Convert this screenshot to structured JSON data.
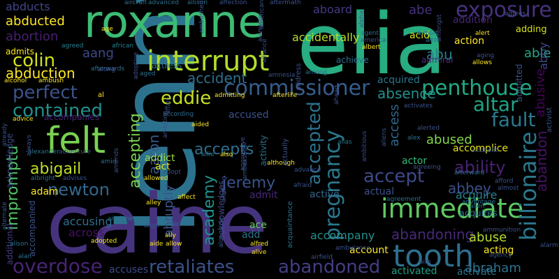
{
  "words": [
    {
      "text": "lenny",
      "color": "#2c728e"
    },
    {
      "text": "elia",
      "color": "#27ad81"
    },
    {
      "text": "caine",
      "color": "#46337e"
    },
    {
      "text": "roxanne",
      "color": "#3dbc74"
    },
    {
      "text": "tooth",
      "color": "#2e6e8e"
    },
    {
      "text": "interrupt",
      "color": "#b2dd2c"
    },
    {
      "text": "felt",
      "color": "#7ad151"
    },
    {
      "text": "immediate",
      "color": "#5ec962"
    },
    {
      "text": "penthouse",
      "color": "#22a884"
    },
    {
      "text": "commissioner",
      "color": "#365d8d"
    },
    {
      "text": "exposure",
      "color": "#46327e"
    },
    {
      "text": "retaliates",
      "color": "#3b528b"
    },
    {
      "text": "abandoned",
      "color": "#433d84"
    },
    {
      "text": "overdose",
      "color": "#482475"
    },
    {
      "text": "billionaire",
      "color": "#2a788e"
    },
    {
      "text": "contained",
      "color": "#21918c"
    },
    {
      "text": "perfect",
      "color": "#3b528b"
    },
    {
      "text": "colin",
      "color": "#d0e11c"
    },
    {
      "text": "abduction",
      "color": "#fde725"
    },
    {
      "text": "abortion",
      "color": "#481f70"
    },
    {
      "text": "abducted",
      "color": "#fde725"
    },
    {
      "text": "abducts",
      "color": "#414487"
    },
    {
      "text": "pregnancy",
      "color": "#2a788e"
    },
    {
      "text": "jeremy",
      "color": "#3b528b"
    },
    {
      "text": "newton",
      "color": "#31688e"
    },
    {
      "text": "abigail",
      "color": "#bddf26"
    },
    {
      "text": "impromptu",
      "color": "#52c569"
    },
    {
      "text": "aaron",
      "color": "#38588c"
    },
    {
      "text": "eddie",
      "color": "#c8e020"
    },
    {
      "text": "accident",
      "color": "#2e6f8e"
    },
    {
      "text": "accepted",
      "color": "#2c728e"
    },
    {
      "text": "altar",
      "color": "#20a386"
    },
    {
      "text": "fault",
      "color": "#2a788e"
    },
    {
      "text": "abu",
      "color": "#26828e"
    },
    {
      "text": "aang",
      "color": "#3e4989"
    },
    {
      "text": "abe",
      "color": "#46307e"
    },
    {
      "text": "able",
      "color": "#22a785"
    },
    {
      "text": "aboard",
      "color": "#443a83"
    },
    {
      "text": "abandon",
      "color": "#471365"
    },
    {
      "text": "abusive",
      "color": "#450457"
    },
    {
      "text": "abby",
      "color": "#404688"
    },
    {
      "text": "absence",
      "color": "#21918c"
    },
    {
      "text": "accept",
      "color": "#3e4989"
    },
    {
      "text": "ability",
      "color": "#482173"
    },
    {
      "text": "abbey",
      "color": "#3c508b"
    },
    {
      "text": "accepts",
      "color": "#2d708e"
    },
    {
      "text": "accepting",
      "color": "#7ad151"
    },
    {
      "text": "abused",
      "color": "#86d549"
    },
    {
      "text": "academy",
      "color": "#1f948c"
    },
    {
      "text": "abruptly",
      "color": "#3b528b"
    },
    {
      "text": "abandoning",
      "color": "#482878"
    },
    {
      "text": "abuse",
      "color": "#b5de2b"
    },
    {
      "text": "abraham",
      "color": "#2c728e"
    },
    {
      "text": "access",
      "color": "#31688e"
    },
    {
      "text": "accidentally",
      "color": "#b8de29"
    },
    {
      "text": "acid",
      "color": "#d2e21b"
    },
    {
      "text": "addition",
      "color": "#482475"
    },
    {
      "text": "action",
      "color": "#fde725"
    },
    {
      "text": "adding",
      "color": "#d5e21a"
    },
    {
      "text": "acquired",
      "color": "#2a788e"
    },
    {
      "text": "accomplice",
      "color": "#e5e419"
    },
    {
      "text": "acquire",
      "color": "#26828e"
    },
    {
      "text": "accompany",
      "color": "#21918c"
    },
    {
      "text": "account",
      "color": "#fde725"
    },
    {
      "text": "acting",
      "color": "#fde725"
    },
    {
      "text": "activated",
      "color": "#1fa088"
    },
    {
      "text": "activate",
      "color": "#2c728e"
    },
    {
      "text": "accusing",
      "color": "#2e6e8e"
    },
    {
      "text": "accuses",
      "color": "#3e4989"
    },
    {
      "text": "across",
      "color": "#471063"
    },
    {
      "text": "ace",
      "color": "#6ccd5a"
    },
    {
      "text": "add",
      "color": "#2c728e"
    },
    {
      "text": "admit",
      "color": "#482878"
    },
    {
      "text": "active",
      "color": "#31688e"
    },
    {
      "text": "actual",
      "color": "#3b528b"
    },
    {
      "text": "actor",
      "color": "#35b779"
    },
    {
      "text": "addict",
      "color": "#a0da39"
    },
    {
      "text": "act",
      "color": "#dde318"
    },
    {
      "text": "adam",
      "color": "#fde725"
    },
    {
      "text": "accused",
      "color": "#3b528b"
    },
    {
      "text": "achieve",
      "color": "#2e6e8e"
    },
    {
      "text": "admiral",
      "color": "#46327e"
    },
    {
      "text": "acquires",
      "color": "#2c728e"
    },
    {
      "text": "admitted",
      "color": "#3b528b"
    },
    {
      "text": "accompanies",
      "color": "#482475"
    },
    {
      "text": "accompanied",
      "color": "#3b528b"
    },
    {
      "text": "additional",
      "color": "#433d84"
    },
    {
      "text": "acknowledge",
      "color": "#3e4989"
    },
    {
      "text": "acknowledges",
      "color": "#3e4989"
    },
    {
      "text": "admits",
      "color": "#fde725"
    },
    {
      "text": "agreed",
      "color": "#26828e"
    },
    {
      "text": "african",
      "color": "#26828e"
    },
    {
      "text": "actress",
      "color": "#2a788e"
    },
    {
      "text": "afterwards",
      "color": "#2e6e8e"
    },
    {
      "text": "age",
      "color": "#fde725"
    },
    {
      "text": "alcohol",
      "color": "#fde725"
    },
    {
      "text": "ambush",
      "color": "#fde725"
    },
    {
      "text": "according",
      "color": "#2e6e8e"
    },
    {
      "text": "admitting",
      "color": "#fde725"
    },
    {
      "text": "afterlife",
      "color": "#fde725"
    },
    {
      "text": "aided",
      "color": "#fde725"
    },
    {
      "text": "advice",
      "color": "#fde725"
    },
    {
      "text": "alexander",
      "color": "#2c728e"
    },
    {
      "text": "adventure",
      "color": "#3b528b"
    },
    {
      "text": "allie",
      "color": "#2c728e"
    },
    {
      "text": "also",
      "color": "#fde725"
    },
    {
      "text": "alias",
      "color": "#2c728e"
    },
    {
      "text": "alex",
      "color": "#2c728e"
    },
    {
      "text": "albright",
      "color": "#2c728e"
    },
    {
      "text": "advises",
      "color": "#3b528b"
    },
    {
      "text": "alley",
      "color": "#fde725"
    },
    {
      "text": "allowed",
      "color": "#fde725"
    },
    {
      "text": "adopt",
      "color": "#3b528b"
    },
    {
      "text": "afraid",
      "color": "#3b528b"
    },
    {
      "text": "aircraft",
      "color": "#2c728e"
    },
    {
      "text": "advanced",
      "color": "#2c728e"
    },
    {
      "text": "allison",
      "color": "#2c728e"
    },
    {
      "text": "affection",
      "color": "#3b528b"
    },
    {
      "text": "aftermath",
      "color": "#3b528b"
    },
    {
      "text": "agent",
      "color": "#2c728e"
    },
    {
      "text": "america",
      "color": "#3b528b"
    },
    {
      "text": "albert",
      "color": "#fde725"
    },
    {
      "text": "airport",
      "color": "#2c728e"
    },
    {
      "text": "alter",
      "color": "#2c728e"
    },
    {
      "text": "alert",
      "color": "#fde725"
    },
    {
      "text": "agrees",
      "color": "#3b528b"
    },
    {
      "text": "aging",
      "color": "#3b528b"
    },
    {
      "text": "allows",
      "color": "#fde725"
    },
    {
      "text": "agreeing",
      "color": "#3b528b"
    },
    {
      "text": "afterward",
      "color": "#2c728e"
    },
    {
      "text": "afford",
      "color": "#3b528b"
    },
    {
      "text": "almost",
      "color": "#3b528b"
    },
    {
      "text": "advantage",
      "color": "#2c728e"
    },
    {
      "text": "allen",
      "color": "#2c728e"
    },
    {
      "text": "agreement",
      "color": "#2c728e"
    },
    {
      "text": "airfield",
      "color": "#3b528b"
    },
    {
      "text": "alive",
      "color": "#fde725"
    },
    {
      "text": "alfred",
      "color": "#fde725"
    },
    {
      "text": "aide",
      "color": "#fde725"
    },
    {
      "text": "adopted",
      "color": "#fde725"
    },
    {
      "text": "airplane",
      "color": "#2c728e"
    },
    {
      "text": "air",
      "color": "#2c728e"
    },
    {
      "text": "allow",
      "color": "#fde725"
    },
    {
      "text": "ally",
      "color": "#fde725"
    },
    {
      "text": "affect",
      "color": "#fde725"
    },
    {
      "text": "ammunition",
      "color": "#3b528b"
    },
    {
      "text": "alarm",
      "color": "#3b528b"
    },
    {
      "text": "ambulance",
      "color": "#3b528b"
    },
    {
      "text": "agency",
      "color": "#3b528b"
    },
    {
      "text": "aim",
      "color": "#3b528b"
    },
    {
      "text": "alan",
      "color": "#2c728e"
    },
    {
      "text": "alison",
      "color": "#2c728e"
    },
    {
      "text": "among",
      "color": "#2c728e"
    },
    {
      "text": "amnesia",
      "color": "#3b528b"
    },
    {
      "text": "aged",
      "color": "#2c728e"
    },
    {
      "text": "al",
      "color": "#fde725"
    },
    {
      "text": "along",
      "color": "#3b528b"
    },
    {
      "text": "amid",
      "color": "#2c728e"
    },
    {
      "text": "align",
      "color": "#3b528b"
    },
    {
      "text": "advance",
      "color": "#3b528b"
    },
    {
      "text": "alerted",
      "color": "#3b528b"
    },
    {
      "text": "although",
      "color": "#fde725"
    },
    {
      "text": "activity",
      "color": "#2c728e"
    },
    {
      "text": "activist",
      "color": "#3b528b"
    },
    {
      "text": "alcoholic",
      "color": "#3b528b"
    },
    {
      "text": "activates",
      "color": "#3b528b"
    },
    {
      "text": "actually",
      "color": "#3b528b"
    },
    {
      "text": "ambitious",
      "color": "#3b528b"
    },
    {
      "text": "address",
      "color": "#3b528b"
    },
    {
      "text": "ambassador",
      "color": "#3b528b"
    },
    {
      "text": "acquaintance",
      "color": "#2c728e"
    },
    {
      "text": "aliens",
      "color": "#3b528b"
    },
    {
      "text": "allowing",
      "color": "#3b528b"
    },
    {
      "text": "alongside",
      "color": "#3b528b"
    },
    {
      "text": "ambition",
      "color": "#3b528b"
    },
    {
      "text": "affair",
      "color": "#3b528b"
    },
    {
      "text": "amends",
      "color": "#3b528b"
    },
    {
      "text": "always",
      "color": "#3b528b"
    },
    {
      "text": "already",
      "color": "#3b528b"
    },
    {
      "text": "alternate",
      "color": "#3b528b"
    },
    {
      "text": "adoptive",
      "color": "#3b528b"
    },
    {
      "text": "ambushed",
      "color": "#3b528b"
    },
    {
      "text": "alameim",
      "color": "#3b528b"
    },
    {
      "text": "alliance",
      "color": "#3b528b"
    },
    {
      "text": "amongst",
      "color": "#3b528b"
    },
    {
      "text": "ahead",
      "color": "#3b528b"
    },
    {
      "text": "alpha",
      "color": "#3b528b"
    },
    {
      "text": "aggressive",
      "color": "#3b528b"
    },
    {
      "text": "american",
      "color": "#3b528b"
    }
  ]
}
